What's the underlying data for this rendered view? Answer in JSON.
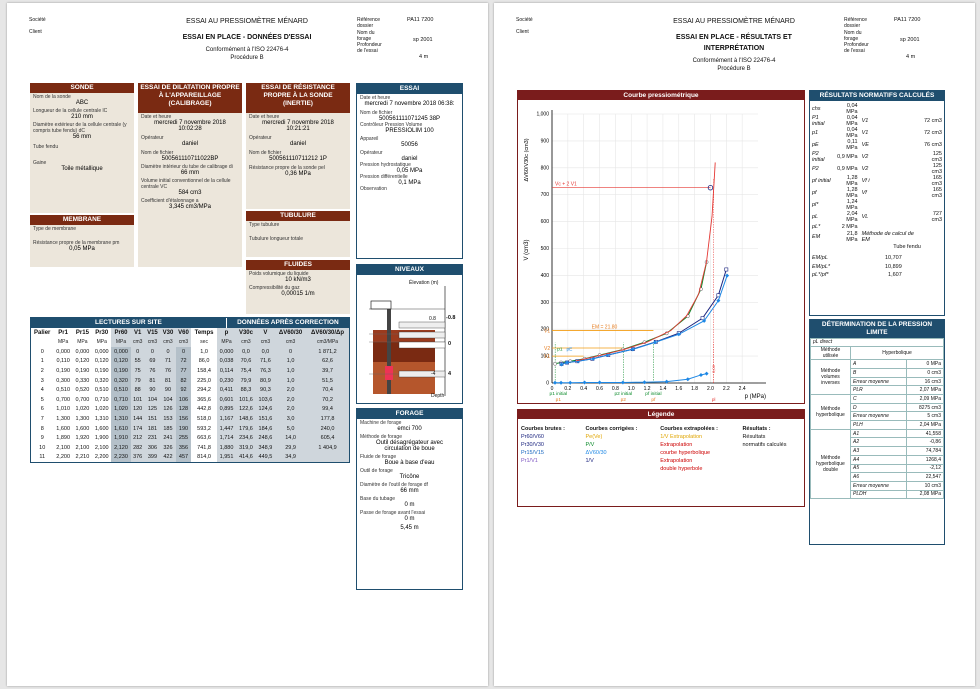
{
  "header": {
    "societe": "Société",
    "client": "Client",
    "title": "ESSAI AU PRESSIOMÈTRE MÉNARD",
    "p1_subtitle": "ESSAI EN PLACE - DONNÉES D'ESSAI",
    "p2_subtitle_1": "ESSAI EN PLACE - RÉSULTATS ET",
    "p2_subtitle_2": "INTERPRÉTATION",
    "norm": "Conformément à l'ISO 22476-4",
    "procedure": "Procédure B",
    "ref_label_1": "Référence",
    "ref_label_2": "dossier",
    "ref_value": "PA11 7200",
    "forage_label_1": "Nom du",
    "forage_label_2": "forage",
    "forage_value": "sp 2001",
    "prof_label_1": "Profondeur",
    "prof_label_2": "de l'essai",
    "prof_value": "4 m"
  },
  "sonde": {
    "title": "SONDE",
    "nom_label": "Nom de la sonde",
    "nom": "ABC",
    "longueur_label": "Longueur de la cellule centrale lC",
    "longueur": "210 mm",
    "diametre_label": "Diamètre extérieur de la cellule centrale (y compris tube fendu) dC",
    "diametre": "56 mm",
    "tube_label": "Tube fendu",
    "gaine_label": "Gaine",
    "gaine": "Toile métallique"
  },
  "membrane": {
    "title": "MEMBRANE",
    "type_label": "Type de membrane",
    "resistance_label": "Résistance propre de la membrane pm",
    "resistance": "0,05 MPa"
  },
  "dilatation": {
    "title": "ESSAI DE DILATATION PROPRE À L'APPAREILLAGE (CALIBRAGE)",
    "date_label": "Date et heure",
    "date": "mercredi 7 novembre 2018",
    "time": "10:02:28",
    "operateur_label": "Opérateur",
    "operateur": "daniel",
    "fichier_label": "Nom de fichier",
    "fichier": "500561110711022BP",
    "diametre_label": "Diamètre intérieur du tube de calibrage di",
    "diametre": "66 mm",
    "volume_label": "Volume initial conventionnel de la cellule centrale VC",
    "volume": "584 cm3",
    "coef_label": "Coefficient d'étalonnage a",
    "coef": "3,345 cm3/MPa"
  },
  "resistance": {
    "title": "ESSAI DE RÉSISTANCE PROPRE À LA SONDE (INERTIE)",
    "date_label": "Date et heure",
    "date": "mercredi 7 novembre 2018",
    "time": "10:21:21",
    "operateur_label": "Opérateur",
    "operateur": "daniel",
    "fichier_label": "Nom de fichier",
    "fichier": "500561110711212 1P",
    "res_label": "Résistance propre de la sonde pel",
    "res": "0,36 MPa"
  },
  "tubulure": {
    "title": "TUBULURE",
    "type_label": "Type tubulure",
    "longueur_label": "Tubulure longueur totale"
  },
  "fluides": {
    "title": "FLUIDES",
    "poids_label": "Poids volumique du liquide",
    "poids": "10 kN/m3",
    "compress_label": "Compressibilité du gaz",
    "compress": "0,00015 1/m"
  },
  "essai": {
    "title": "ESSAI",
    "date_label": "Date et heure",
    "date": "mercredi 7 novembre 2018 06:38:",
    "fichier_label": "Nom de fichier",
    "fichier": "500561111071245 38P",
    "controleur_label": "Contrôleur Pression Volume",
    "controleur": "PRESSIOLIM 100",
    "appareil_label": "Appareil",
    "appareil": "50056",
    "operateur_label": "Opérateur",
    "operateur": "daniel",
    "hydro_label": "Pression hydrostatique",
    "hydro": "0,05 MPa",
    "diff_label": "Pression différentielle",
    "diff": "0,1 MPa",
    "obs_label": "Observation"
  },
  "niveaux": {
    "title": "NIVEAUX",
    "elevation": "Élevation (m)",
    "depth": "Depth",
    "v1": "-0.8",
    "v2": "0",
    "v3": "-4",
    "v4": "4",
    "v5": "0.8"
  },
  "forage": {
    "title": "FORAGE",
    "machine_label": "Machine de forage",
    "machine": "emci 700",
    "methode_label": "Méthode de forage",
    "methode_1": "Outil désagrégateur avec",
    "methode_2": "circulation de boue",
    "fluide_label": "Fluide de forage",
    "fluide": "Boue à base d'eau",
    "outil_label": "Outil de forage",
    "outil": "Tricône",
    "diametre_label": "Diamètre de l'outil de forage df",
    "diametre": "66 mm",
    "base_label": "Base du tubage",
    "base": "0 m",
    "passe_label": "Passe de forage avant l'essai",
    "passe": "0 m",
    "last": "5,45 m"
  },
  "lectures": {
    "title": "LECTURES SUR SITE",
    "title2": "DONNÉES APRÈS CORRECTION",
    "headers": [
      "Palier",
      "Pr1",
      "Pr15",
      "Pr30",
      "Pr60",
      "V1",
      "V15",
      "V30",
      "V60",
      "Temps",
      "p",
      "V30c",
      "V",
      "ΔV60/30",
      "ΔV60/30/Δp"
    ],
    "units": [
      "",
      "MPa",
      "MPa",
      "MPa",
      "MPa",
      "cm3",
      "cm3",
      "cm3",
      "cm3",
      "sec",
      "MPa",
      "cm3",
      "cm3",
      "cm3",
      "cm3/MPa"
    ],
    "rows": [
      [
        "0",
        "0,000",
        "0,000",
        "0,000",
        "0,000",
        "0",
        "0",
        "0",
        "0",
        "1,0",
        "0,000",
        "0,0",
        "0,0",
        "0",
        "1 871,2"
      ],
      [
        "1",
        "0,110",
        "0,120",
        "0,120",
        "0,120",
        "55",
        "69",
        "71",
        "72",
        "86,0",
        "0,038",
        "70,6",
        "71,6",
        "1,0",
        "62,6"
      ],
      [
        "2",
        "0,190",
        "0,190",
        "0,190",
        "0,190",
        "75",
        "76",
        "76",
        "77",
        "158,4",
        "0,114",
        "75,4",
        "76,3",
        "1,0",
        "39,7"
      ],
      [
        "3",
        "0,300",
        "0,330",
        "0,320",
        "0,320",
        "79",
        "81",
        "81",
        "82",
        "225,0",
        "0,230",
        "79,9",
        "80,9",
        "1,0",
        "51,5"
      ],
      [
        "4",
        "0,510",
        "0,520",
        "0,510",
        "0,510",
        "88",
        "90",
        "90",
        "92",
        "294,2",
        "0,411",
        "88,3",
        "90,3",
        "2,0",
        "70,4"
      ],
      [
        "5",
        "0,700",
        "0,700",
        "0,710",
        "0,710",
        "101",
        "104",
        "104",
        "106",
        "365,6",
        "0,601",
        "101,6",
        "103,6",
        "2,0",
        "70,2"
      ],
      [
        "6",
        "1,010",
        "1,020",
        "1,020",
        "1,020",
        "120",
        "125",
        "126",
        "128",
        "442,8",
        "0,895",
        "122,6",
        "124,6",
        "2,0",
        "99,4"
      ],
      [
        "7",
        "1,300",
        "1,300",
        "1,310",
        "1,310",
        "144",
        "151",
        "153",
        "156",
        "518,0",
        "1,167",
        "148,6",
        "151,6",
        "3,0",
        "177,8"
      ],
      [
        "8",
        "1,600",
        "1,600",
        "1,600",
        "1,610",
        "174",
        "181",
        "185",
        "190",
        "593,2",
        "1,447",
        "179,6",
        "184,6",
        "5,0",
        "240,0"
      ],
      [
        "9",
        "1,890",
        "1,920",
        "1,900",
        "1,910",
        "212",
        "231",
        "241",
        "255",
        "663,6",
        "1,714",
        "234,6",
        "248,6",
        "14,0",
        "605,4"
      ],
      [
        "10",
        "2,100",
        "2,100",
        "2,100",
        "2,120",
        "282",
        "306",
        "326",
        "356",
        "741,8",
        "1,880",
        "319,0",
        "348,9",
        "29,9",
        "1 404,9"
      ],
      [
        "11",
        "2,200",
        "2,210",
        "2,200",
        "2,230",
        "376",
        "399",
        "422",
        "457",
        "814,0",
        "1,951",
        "414,6",
        "449,5",
        "34,9",
        ""
      ]
    ]
  },
  "chart_data": {
    "type": "line",
    "title": "Courbe pressiométrique",
    "xlabel": "p (MPa)",
    "ylabel": "V (cm3)",
    "y2label": "ΔV60/V30c (cm3)",
    "xlim": [
      0,
      2.6
    ],
    "ylim": [
      0,
      1000
    ],
    "xticks": [
      "0",
      "0.2",
      "0.4",
      "0.6",
      "0.8",
      "1.0",
      "1.2",
      "1.4",
      "1.6",
      "1.8",
      "2.0",
      "2.2",
      "2.4"
    ],
    "yticks": [
      "0",
      "100",
      "200",
      "300",
      "400",
      "500",
      "600",
      "700",
      "800",
      "900",
      "1,000"
    ],
    "annotations": [
      "Vc + 2 V1",
      "EM = 21.80",
      "V1",
      "V2",
      "V1",
      "p1",
      "pE",
      "p1 initial",
      "p2 initial",
      "pf initial",
      "p1",
      "p2",
      "pf",
      "pl",
      "2,06"
    ],
    "series": [
      {
        "name": "P/V",
        "x": [
          0.038,
          0.114,
          0.23,
          0.411,
          0.601,
          0.895,
          1.167,
          1.447,
          1.714,
          1.88,
          1.951
        ],
        "y": [
          71.6,
          76.3,
          80.9,
          90.3,
          103.6,
          124.6,
          151.6,
          184.6,
          248.6,
          348.9,
          449.5
        ]
      },
      {
        "name": "Pr30/V30",
        "x": [
          0.12,
          0.19,
          0.32,
          0.51,
          0.71,
          1.02,
          1.31,
          1.6,
          1.9,
          2.1,
          2.2
        ],
        "y": [
          71,
          76,
          81,
          90,
          104,
          126,
          153,
          185,
          241,
          326,
          422
        ]
      },
      {
        "name": "Pr15/V15",
        "x": [
          0.12,
          0.19,
          0.33,
          0.52,
          0.7,
          1.02,
          1.3,
          1.6,
          1.92,
          2.1,
          2.21
        ],
        "y": [
          69,
          76,
          81,
          90,
          104,
          125,
          151,
          181,
          231,
          306,
          399
        ]
      },
      {
        "name": "ΔV60/30",
        "x": [
          0.038,
          0.114,
          0.23,
          0.411,
          0.601,
          0.895,
          1.167,
          1.447,
          1.714,
          1.88,
          1.951
        ],
        "y": [
          1,
          1,
          1,
          2,
          2,
          2,
          3,
          5,
          14,
          29.9,
          34.9
        ]
      },
      {
        "name": "Extrapolation courbe hyperbolique",
        "x": [
          0.3,
          0.6,
          0.9,
          1.2,
          1.5,
          1.7,
          1.85,
          1.95,
          2.02,
          2.06
        ],
        "y": [
          82,
          102,
          124,
          152,
          195,
          250,
          330,
          450,
          620,
          820
        ]
      }
    ]
  },
  "legend": {
    "title": "Légende",
    "col1": "Courbes brutes :",
    "col2": "Courbes corrigées :",
    "col3": "Courbes extrapolées :",
    "col4": "Résultats :",
    "b1": "Pr60/V60",
    "b2": "Pr30/V30",
    "b3": "Pr15/V15",
    "b4": "Pr1/V1",
    "c1": "Pe(Ve)",
    "c2": "P/V",
    "c3": "ΔV60/30",
    "c4": "1/V",
    "e1": "1/V Extrapolation",
    "e2": "Extrapolation",
    "e3": "courbe hyperbolique",
    "e4": "Extrapolation",
    "e5": "double hyperbole",
    "r1": "Résultats",
    "r2": "normatifs calculés"
  },
  "resultats": {
    "title": "RÉSULTATS NORMATIFS CALCULÉS",
    "rows": [
      [
        "chs",
        "0,04 MPa",
        "",
        ""
      ],
      [
        "P1 initial",
        "0,04 MPa",
        "V1",
        "72 cm3"
      ],
      [
        "p1",
        "0,04 MPa",
        "V1",
        "72 cm3"
      ],
      [
        "pE",
        "0,11 MPa",
        "VE",
        "76 cm3"
      ],
      [
        "P2 initial",
        "0,9 MPa",
        "V2",
        "125 cm3"
      ],
      [
        "P2",
        "0,9 MPa",
        "V2",
        "125 cm3"
      ],
      [
        "pf initial",
        "1,28 MPa",
        "Vf i",
        "165 cm3"
      ],
      [
        "pf",
        "1,28 MPa",
        "Vf",
        "165 cm3"
      ],
      [
        "pl*",
        "1,24 MPa",
        "",
        ""
      ],
      [
        "pL",
        "2,04 MPa",
        "VL",
        "727 cm3"
      ],
      [
        "pL*",
        "2 MPa",
        "",
        ""
      ],
      [
        "EM",
        "21,8 MPa",
        "Méthode de calcul de EM",
        ""
      ]
    ],
    "tube": "Tube fendu",
    "ratios": [
      [
        "EM/pL",
        "10,707"
      ],
      [
        "EM/pL*",
        "10,899"
      ],
      [
        "pL*/pf*",
        "1,607"
      ]
    ]
  },
  "determination": {
    "title": "DÉTERMINATION DE LA PRESSION LIMITE",
    "pl_direct": "pL direct",
    "methode_label": "Méthode utilisée",
    "methode": "Hyperbolique",
    "g1": "Méthode volumes inverses",
    "g1_rows": [
      [
        "A",
        "0 MPa"
      ],
      [
        "B",
        "0 cm3"
      ],
      [
        "Erreur moyenne",
        "16 cm3"
      ],
      [
        "PLR",
        "2,07 MPa"
      ]
    ],
    "g2": "Méthode hyperbolique",
    "g2_rows": [
      [
        "C",
        "2,09 MPa"
      ],
      [
        "D",
        "8275 cm3"
      ],
      [
        "Erreur moyenne",
        "5 cm3"
      ],
      [
        "PLH",
        "2,04 MPa"
      ]
    ],
    "g3": "Méthode hyperbolique double",
    "g3_rows": [
      [
        "A1",
        "41,558"
      ],
      [
        "A2",
        "-0,86"
      ],
      [
        "A3",
        "74,784"
      ],
      [
        "A4",
        "1268,4"
      ],
      [
        "A5",
        "-2,12"
      ],
      [
        "A6",
        "22,547"
      ],
      [
        "Erreur moyenne",
        "10 cm3"
      ],
      [
        "PLDH",
        "2,08 MPa"
      ]
    ]
  }
}
